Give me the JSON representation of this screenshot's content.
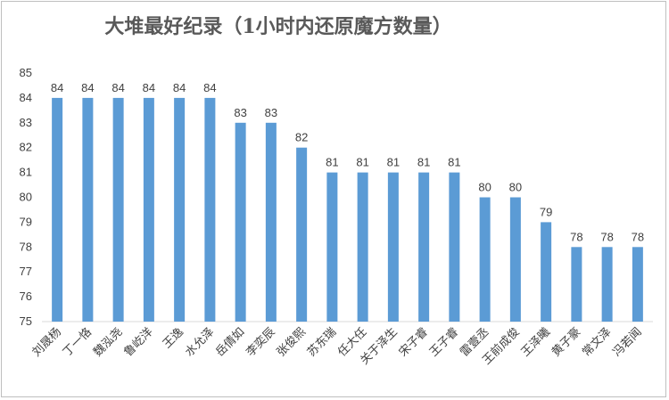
{
  "chart_data": {
    "type": "bar",
    "title": "大堆最好纪录（1小时内还原魔方数量）",
    "categories": [
      "刘晟杨",
      "丁一恪",
      "魏泓尧",
      "鲁屹洋",
      "王逸",
      "水允泽",
      "岳倩如",
      "李奕辰",
      "张俊熙",
      "苏东瑞",
      "任大任",
      "关于泽生",
      "宋子睿",
      "王子睿",
      "雷壹丞",
      "王前成俊",
      "王泽曦",
      "黄子豪",
      "常文泽",
      "冯若闻"
    ],
    "values": [
      84,
      84,
      84,
      84,
      84,
      84,
      83,
      83,
      82,
      81,
      81,
      81,
      81,
      81,
      80,
      80,
      79,
      78,
      78,
      78
    ],
    "ylim": [
      75,
      85
    ],
    "yticks": [
      75,
      76,
      77,
      78,
      79,
      80,
      81,
      82,
      83,
      84,
      85
    ],
    "xlabel": "",
    "ylabel": "",
    "grid": false,
    "bar_color": "#5b9bd5"
  }
}
